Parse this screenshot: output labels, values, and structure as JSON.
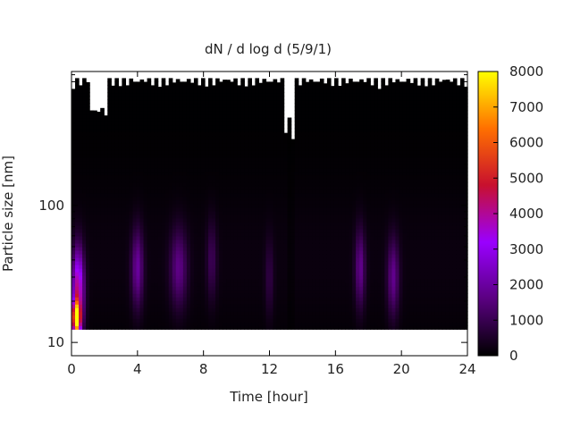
{
  "chart_data": {
    "type": "heatmap",
    "title": "dN / d log d (5/9/1)",
    "xlabel": "Time [hour]",
    "ylabel": "Particle size [nm]",
    "x_range": [
      0,
      24
    ],
    "x_ticks": [
      0,
      4,
      8,
      12,
      16,
      20,
      24
    ],
    "y_scale": "log",
    "y_range_nm": [
      8,
      950
    ],
    "y_tick_labels": [
      "10",
      "100"
    ],
    "y_tick_values": [
      10,
      100
    ],
    "y_minor_ticks": [
      20,
      30,
      40,
      50,
      60,
      70,
      80,
      90,
      200,
      300,
      400,
      500,
      600,
      700,
      800,
      900
    ],
    "colorbar": {
      "range": [
        0,
        8000
      ],
      "tick_labels": [
        "0",
        "1000",
        "2000",
        "3000",
        "4000",
        "5000",
        "6000",
        "7000",
        "8000"
      ],
      "tick_values": [
        0,
        1000,
        2000,
        3000,
        4000,
        5000,
        6000,
        7000,
        8000
      ],
      "palette": [
        "#000000",
        "#5a0080",
        "#9a00ff",
        "#c8102e",
        "#ff7000",
        "#ffff00"
      ]
    },
    "data_extent": {
      "size_min_nm": 12.5,
      "size_max_nm": 850,
      "time_start_h": 0,
      "time_end_h": 24
    },
    "peak": {
      "time_h": 0.3,
      "size_nm": 15,
      "value": 7500
    },
    "peak_lower_size_nm": 10,
    "peak_upper_size_nm": 40,
    "bands": [
      {
        "time_h": 0.4,
        "center_nm": 25,
        "value": 4000,
        "width_h": 0.35
      },
      {
        "time_h": 4.0,
        "center_nm": 35,
        "value": 1800,
        "width_h": 0.35
      },
      {
        "time_h": 6.5,
        "center_nm": 35,
        "value": 1500,
        "width_h": 0.5
      },
      {
        "time_h": 8.5,
        "center_nm": 40,
        "value": 900,
        "width_h": 0.3
      },
      {
        "time_h": 12.0,
        "center_nm": 30,
        "value": 700,
        "width_h": 0.25
      },
      {
        "time_h": 17.5,
        "center_nm": 35,
        "value": 1600,
        "width_h": 0.3
      },
      {
        "time_h": 19.5,
        "center_nm": 30,
        "value": 1600,
        "width_h": 0.35
      }
    ],
    "dip": {
      "time_h": 13.3,
      "width_h": 0.15
    }
  }
}
